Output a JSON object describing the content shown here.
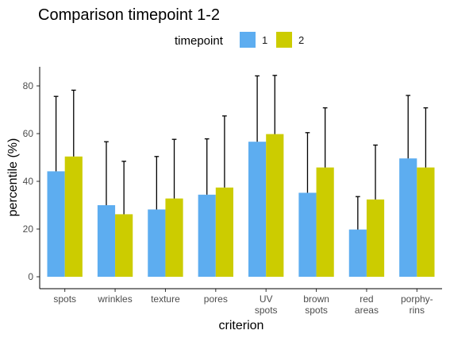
{
  "chart_data": {
    "type": "bar",
    "title": "Comparison timepoint 1-2",
    "xlabel": "criterion",
    "ylabel": "percentile (%)",
    "ylim": [
      -5,
      88
    ],
    "yticks": [
      0,
      20,
      40,
      60,
      80
    ],
    "legend": {
      "title": "timepoint",
      "position": "top"
    },
    "categories": [
      [
        "spots"
      ],
      [
        "wrinkles"
      ],
      [
        "texture"
      ],
      [
        "pores"
      ],
      [
        "UV",
        "spots"
      ],
      [
        "brown",
        "spots"
      ],
      [
        "red",
        "areas"
      ],
      [
        "porphy-",
        "rins"
      ]
    ],
    "series": [
      {
        "name": "1",
        "color": "#5DADF0",
        "values": [
          44.2,
          30.0,
          28.2,
          34.4,
          56.6,
          35.2,
          19.8,
          49.6
        ],
        "error_upper": [
          75.6,
          56.6,
          50.4,
          57.8,
          84.2,
          60.4,
          33.6,
          76.0
        ]
      },
      {
        "name": "2",
        "color": "#CCCC00",
        "values": [
          50.4,
          26.2,
          32.8,
          37.4,
          59.8,
          45.8,
          32.4,
          45.8
        ],
        "error_upper": [
          78.2,
          48.4,
          57.6,
          67.4,
          84.4,
          70.8,
          55.2,
          70.8
        ]
      }
    ]
  }
}
